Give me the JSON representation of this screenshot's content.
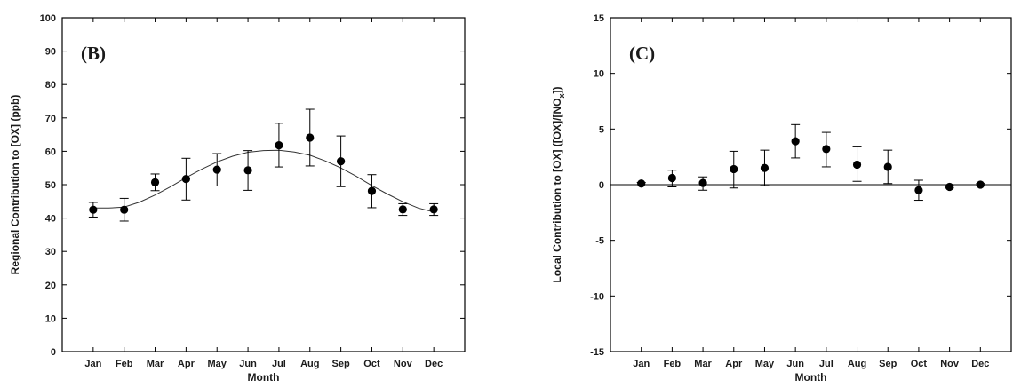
{
  "chart_data": [
    {
      "type": "scatter",
      "panel_label": "(B)",
      "xlabel": "Month",
      "ylabel": "Regional Contribution to [OX] (ppb)",
      "categories": [
        "Jan",
        "Feb",
        "Mar",
        "Apr",
        "May",
        "Jun",
        "Jul",
        "Aug",
        "Sep",
        "Oct",
        "Nov",
        "Dec"
      ],
      "ylim": [
        0,
        100
      ],
      "yticks": [
        0,
        10,
        20,
        30,
        40,
        50,
        60,
        70,
        80,
        90,
        100
      ],
      "series": [
        {
          "marker": "filled-circle",
          "values": [
            42.5,
            42.5,
            50.7,
            51.7,
            54.5,
            54.3,
            61.8,
            64.1,
            57.0,
            48.1,
            42.6,
            42.6
          ],
          "error_low": [
            40.3,
            39.1,
            48.2,
            45.4,
            49.6,
            48.3,
            55.3,
            55.6,
            49.4,
            43.1,
            40.8,
            40.8
          ],
          "error_high": [
            44.7,
            45.9,
            53.2,
            57.9,
            59.3,
            60.2,
            68.4,
            72.6,
            64.6,
            53.0,
            44.3,
            44.3
          ]
        }
      ],
      "fit_curve": {
        "x": [
          1,
          1.5,
          2,
          2.5,
          3,
          3.5,
          4,
          4.5,
          5,
          5.5,
          6,
          6.5,
          7,
          7.5,
          8,
          8.5,
          9,
          9.5,
          10,
          10.5,
          11,
          11.5,
          12
        ],
        "y": [
          43.0,
          43.0,
          43.3,
          44.8,
          46.9,
          49.4,
          52.1,
          54.6,
          56.8,
          58.5,
          59.7,
          60.2,
          60.3,
          59.8,
          58.8,
          57.1,
          55.0,
          52.5,
          49.7,
          47.2,
          44.9,
          43.0,
          41.8
        ]
      }
    },
    {
      "type": "scatter",
      "panel_label": "(C)",
      "xlabel": "Month",
      "ylabel": "Local Contribution to [OX] ([OX]/[NO",
      "ylabel_sub": "x",
      "ylabel_end": "])",
      "categories": [
        "Jan",
        "Feb",
        "Mar",
        "Apr",
        "May",
        "Jun",
        "Jul",
        "Aug",
        "Sep",
        "Oct",
        "Nov",
        "Dec"
      ],
      "ylim": [
        -15,
        15
      ],
      "yticks": [
        -15,
        -10,
        -5,
        0,
        5,
        10,
        15
      ],
      "zero_line": true,
      "series": [
        {
          "marker": "filled-circle",
          "values": [
            0.1,
            0.6,
            0.15,
            1.4,
            1.5,
            3.9,
            3.2,
            1.8,
            1.6,
            -0.5,
            -0.2,
            0.0
          ],
          "error_low": [
            0.0,
            -0.2,
            -0.5,
            -0.3,
            -0.1,
            2.4,
            1.6,
            0.3,
            0.1,
            -1.4,
            -0.3,
            -0.1
          ],
          "error_high": [
            0.2,
            1.3,
            0.7,
            3.0,
            3.1,
            5.4,
            4.7,
            3.4,
            3.1,
            0.4,
            -0.1,
            0.1
          ]
        }
      ]
    }
  ]
}
